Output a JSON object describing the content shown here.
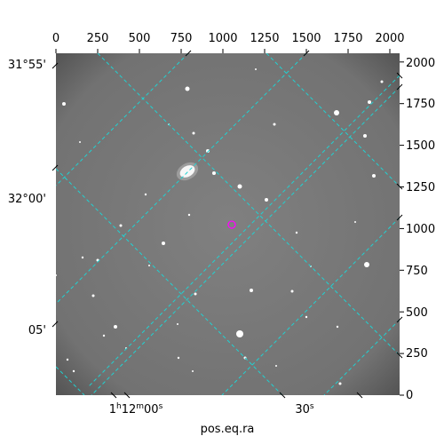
{
  "figure": {
    "x_axis_title": "pos.eq.ra",
    "top_ticks": [
      "0",
      "250",
      "500",
      "750",
      "1000",
      "1250",
      "1500",
      "1750",
      "2000"
    ],
    "right_ticks": [
      "0",
      "250",
      "500",
      "750",
      "1000",
      "1250",
      "1500",
      "1750",
      "2000"
    ],
    "dec_ticks": [
      "31°55'",
      "32°00'",
      "05'"
    ],
    "ra_ticks": [
      "1h12m00s",
      "30s"
    ],
    "colors": {
      "grid": "#20d2d2",
      "marker": "#ff00ff",
      "background_sky": "#7a7a7a",
      "frame": "#000000"
    }
  }
}
